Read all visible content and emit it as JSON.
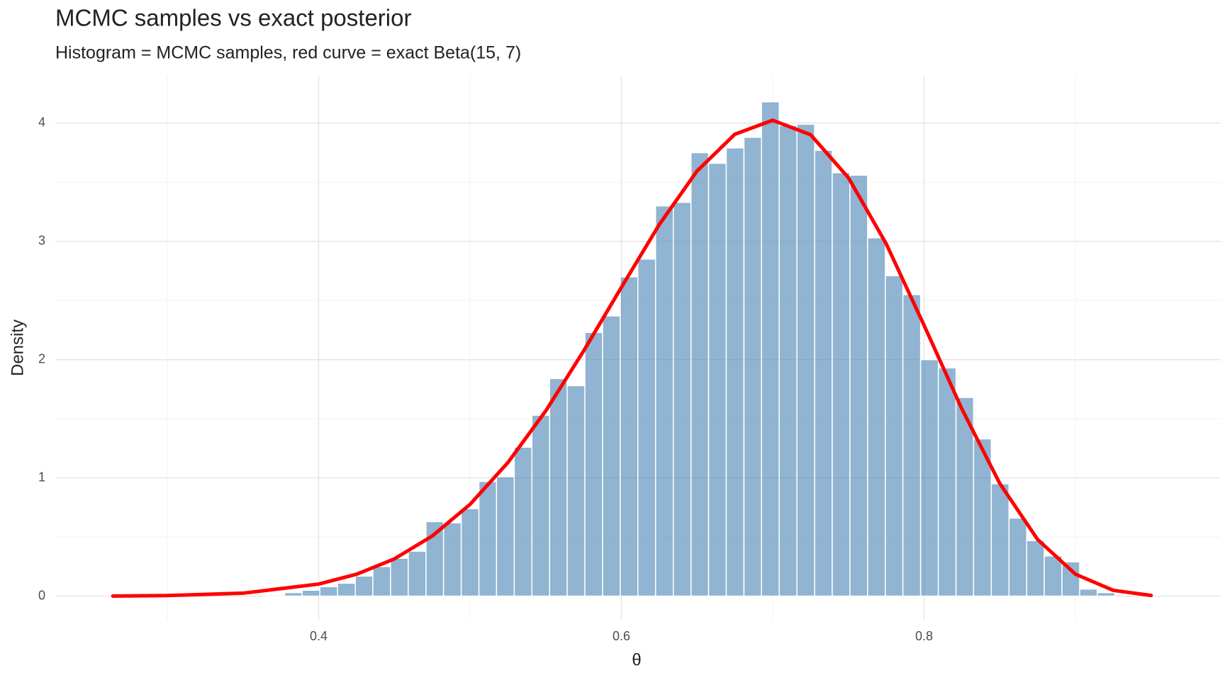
{
  "chart_data": {
    "type": "histogram",
    "title": "MCMC samples vs exact posterior",
    "subtitle": "Histogram = MCMC samples, red curve = exact Beta(15, 7)",
    "x_label": "θ",
    "y_label": "Density",
    "bins": [
      0.3658,
      0.3775,
      0.3891,
      0.4008,
      0.4125,
      0.4242,
      0.4358,
      0.4475,
      0.4592,
      0.4709,
      0.4825,
      0.4942,
      0.5059,
      0.5175,
      0.5292,
      0.5409,
      0.5526,
      0.5642,
      0.5759,
      0.5876,
      0.5993,
      0.6109,
      0.6226,
      0.6343,
      0.646,
      0.6576,
      0.6693,
      0.681,
      0.6926,
      0.7043,
      0.716,
      0.7277,
      0.7393,
      0.751,
      0.7627,
      0.7744,
      0.786,
      0.7977,
      0.8094,
      0.8211,
      0.8327,
      0.8444,
      0.8561,
      0.8678,
      0.8794,
      0.8911,
      0.9028,
      0.9144,
      0.9261
    ],
    "values": [
      0.01,
      0.03,
      0.05,
      0.08,
      0.11,
      0.17,
      0.25,
      0.32,
      0.38,
      0.63,
      0.62,
      0.74,
      0.97,
      1.01,
      1.26,
      1.53,
      1.84,
      1.78,
      2.23,
      2.37,
      2.7,
      2.85,
      3.3,
      3.33,
      3.75,
      3.66,
      3.79,
      3.88,
      4.18,
      3.98,
      3.99,
      3.77,
      3.58,
      3.56,
      3.03,
      2.71,
      2.55,
      2.0,
      1.93,
      1.68,
      1.33,
      0.95,
      0.66,
      0.47,
      0.34,
      0.29,
      0.06,
      0.03
    ],
    "color": "#4682b4",
    "curve": {
      "color": "#ff0000",
      "x": [
        0.264,
        0.3,
        0.35,
        0.4,
        0.425,
        0.45,
        0.475,
        0.5,
        0.525,
        0.55,
        0.575,
        0.6,
        0.625,
        0.65,
        0.675,
        0.7,
        0.725,
        0.75,
        0.775,
        0.8,
        0.825,
        0.85,
        0.875,
        0.9,
        0.925,
        0.95
      ],
      "y": [
        0.001,
        0.005,
        0.025,
        0.102,
        0.185,
        0.315,
        0.508,
        0.776,
        1.129,
        1.566,
        2.072,
        2.611,
        3.141,
        3.595,
        3.906,
        4.024,
        3.902,
        3.538,
        2.979,
        2.29,
        1.582,
        0.953,
        0.479,
        0.186,
        0.049,
        0.006
      ]
    },
    "xlim": [
      0.226,
      0.996
    ],
    "ylim": [
      -0.2,
      4.4
    ],
    "xticks": [
      0.4,
      0.6,
      0.8
    ],
    "yticks": [
      0,
      1,
      2,
      3,
      4
    ],
    "xminor": [
      0.3,
      0.5,
      0.7,
      0.9
    ],
    "yminor": [
      0.5,
      1.5,
      2.5,
      3.5
    ],
    "grid": true
  }
}
